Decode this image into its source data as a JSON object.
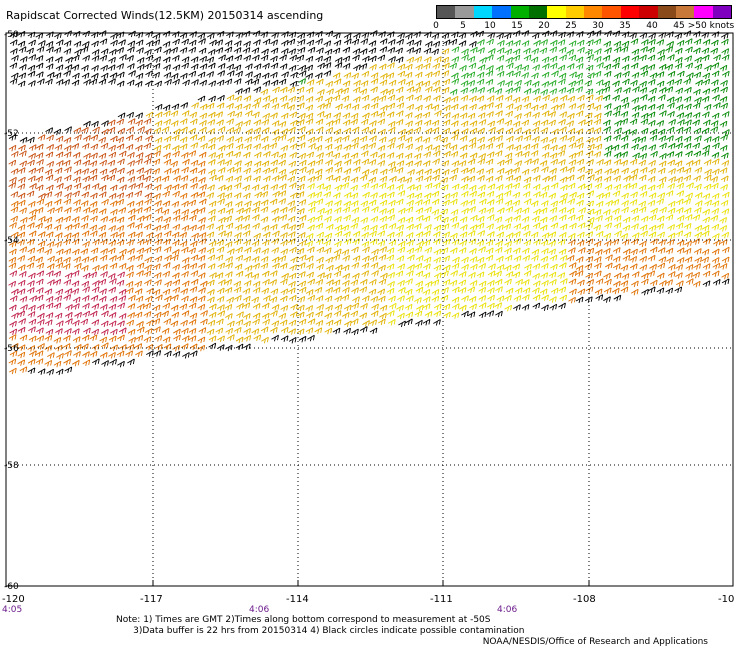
{
  "title": "Rapidscat Corrected Winds(12.5KM) 20150314 ascending",
  "legend": {
    "colors": [
      "#555555",
      "#9a9a9a",
      "#00d8ff",
      "#0070ff",
      "#00b000",
      "#007000",
      "#ffff00",
      "#ffcc00",
      "#ff8800",
      "#ff5500",
      "#ff0000",
      "#cc0000",
      "#8a4a1a",
      "#c87838",
      "#ff00ff",
      "#8000c0"
    ],
    "labels": [
      "0",
      "5",
      "10",
      "15",
      "20",
      "25",
      "30",
      "35",
      "40",
      "45",
      ">50 knots"
    ]
  },
  "axes": {
    "lon_labels": [
      "-120",
      "-117",
      "-114",
      "-111",
      "-108",
      "-10"
    ],
    "lat_labels": [
      "-50",
      "-52",
      "-54",
      "-56",
      "-58",
      "-60"
    ],
    "time_labels": [
      "4:05",
      "4:06",
      "4:06"
    ]
  },
  "wind_colors": {
    "black": "#000000",
    "green": "#008800",
    "lightgreen": "#22aa22",
    "yellow": "#e8e000",
    "gold": "#e0b000",
    "orange": "#e07000",
    "darkorange": "#c85010",
    "red": "#d01010",
    "crimson": "#c0204a"
  },
  "notes": {
    "line1": "Note: 1) Times are GMT 2)Times along bottom correspond to measurement at -50S",
    "line2": "3)Data buffer is 22 hrs from 20150314 4) Black circles indicate possible contamination"
  },
  "credit": "NOAA/NESDIS/Office of Research and Applications"
}
